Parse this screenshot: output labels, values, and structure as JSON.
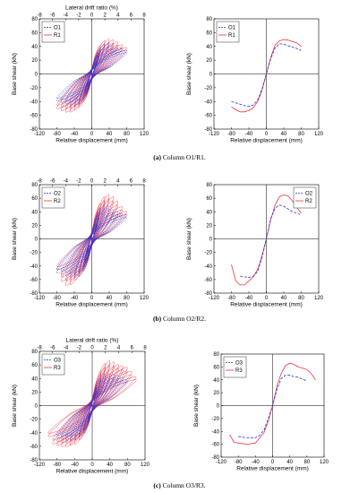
{
  "captions": [
    {
      "label": "(a)",
      "text": "Column O1/R1."
    },
    {
      "label": "(b)",
      "text": "Column O2/R2."
    },
    {
      "label": "(c)",
      "text": "Column O3/R3."
    }
  ],
  "chart_data": [
    {
      "type": "line",
      "top_xlabel": "Lateral drift ratio (%)",
      "top_xlim": [
        -8,
        8
      ],
      "top_xticks": [
        -8,
        -6,
        -4,
        -2,
        0,
        2,
        4,
        6,
        8
      ],
      "xlabel": "Relative displacement (mm)",
      "ylabel": "Base shear (kN)",
      "xlim": [
        -120,
        120
      ],
      "xticks": [
        -120,
        -80,
        -40,
        0,
        40,
        80,
        120
      ],
      "ylim": [
        -80,
        80
      ],
      "yticks": [
        80,
        60,
        40,
        20,
        0,
        -20,
        -40,
        -60,
        -80
      ],
      "legend": "top-left",
      "series": [
        {
          "name": "O1",
          "color": "#2233dd",
          "dashed": true,
          "cycles": [
            {
              "d": 10,
              "fp": 18,
              "fn": -18
            },
            {
              "d": 15,
              "fp": 28,
              "fn": -28
            },
            {
              "d": 20,
              "fp": 36,
              "fn": -36
            },
            {
              "d": 30,
              "fp": 43,
              "fn": -44
            },
            {
              "d": 40,
              "fp": 44,
              "fn": -46
            },
            {
              "d": 50,
              "fp": 41,
              "fn": -45
            },
            {
              "d": 60,
              "fp": 38,
              "fn": -43
            },
            {
              "d": 70,
              "fp": 36,
              "fn": -41
            },
            {
              "d": 80,
              "fp": 34,
              "fn": -39
            }
          ]
        },
        {
          "name": "R1",
          "color": "#ee3344",
          "dashed": false,
          "cycles": [
            {
              "d": 10,
              "fp": 20,
              "fn": -20
            },
            {
              "d": 15,
              "fp": 32,
              "fn": -32
            },
            {
              "d": 20,
              "fp": 42,
              "fn": -40
            },
            {
              "d": 30,
              "fp": 48,
              "fn": -48
            },
            {
              "d": 40,
              "fp": 50,
              "fn": -52
            },
            {
              "d": 50,
              "fp": 49,
              "fn": -55
            },
            {
              "d": 60,
              "fp": 46,
              "fn": -55
            },
            {
              "d": 70,
              "fp": 42,
              "fn": -53
            },
            {
              "d": 80,
              "fp": 38,
              "fn": -50
            }
          ]
        }
      ]
    },
    {
      "type": "line",
      "xlabel": "Relative displacement (mm)",
      "ylabel": "Base shear (kN)",
      "xlim": [
        -120,
        120
      ],
      "xticks": [
        -120,
        -80,
        -40,
        0,
        40,
        80,
        120
      ],
      "ylim": [
        -80,
        80
      ],
      "yticks": [
        80,
        60,
        40,
        20,
        0,
        -20,
        -40,
        -60,
        -80
      ],
      "legend": "top-left",
      "series": [
        {
          "name": "O1",
          "color": "#2233dd",
          "dashed": true,
          "x": [
            -80,
            -70,
            -60,
            -50,
            -40,
            -30,
            -20,
            -10,
            0,
            10,
            20,
            30,
            40,
            50,
            60,
            70,
            80
          ],
          "y": [
            -40,
            -42,
            -44,
            -46,
            -47,
            -45,
            -38,
            -22,
            0,
            22,
            38,
            44,
            43,
            41,
            39,
            37,
            34
          ]
        },
        {
          "name": "R1",
          "color": "#ee3344",
          "dashed": false,
          "x": [
            -80,
            -70,
            -60,
            -50,
            -40,
            -30,
            -20,
            -10,
            0,
            10,
            20,
            30,
            40,
            50,
            60,
            70,
            80
          ],
          "y": [
            -48,
            -52,
            -55,
            -55,
            -53,
            -49,
            -40,
            -24,
            0,
            24,
            42,
            48,
            50,
            49,
            47,
            45,
            40
          ]
        }
      ]
    },
    {
      "type": "line",
      "top_xlim": [
        -8,
        8
      ],
      "top_xticks": [
        -8,
        -6,
        -4,
        -2,
        0,
        2,
        4,
        6,
        8
      ],
      "xlabel": "Relative displacement (mm)",
      "ylabel": "Base shear (kN)",
      "xlim": [
        -120,
        120
      ],
      "xticks": [
        -120,
        -80,
        -40,
        0,
        40,
        80,
        120
      ],
      "ylim": [
        -80,
        80
      ],
      "yticks": [
        80,
        60,
        40,
        20,
        0,
        -20,
        -40,
        -60,
        -80
      ],
      "legend": "top-left",
      "series": [
        {
          "name": "O2",
          "color": "#2233dd",
          "dashed": true,
          "cycles": [
            {
              "d": 10,
              "fp": 22,
              "fn": -22
            },
            {
              "d": 15,
              "fp": 35,
              "fn": -35
            },
            {
              "d": 20,
              "fp": 45,
              "fn": -48
            },
            {
              "d": 30,
              "fp": 50,
              "fn": -55
            },
            {
              "d": 40,
              "fp": 48,
              "fn": -57
            },
            {
              "d": 50,
              "fp": 43,
              "fn": -56
            },
            {
              "d": 60,
              "fp": 40,
              "fn": -54
            },
            {
              "d": 70,
              "fp": 37,
              "fn": -52
            },
            {
              "d": 80,
              "fp": 35,
              "fn": -50
            }
          ]
        },
        {
          "name": "R2",
          "color": "#ee3344",
          "dashed": false,
          "cycles": [
            {
              "d": 10,
              "fp": 24,
              "fn": -22
            },
            {
              "d": 15,
              "fp": 40,
              "fn": -36
            },
            {
              "d": 20,
              "fp": 52,
              "fn": -46
            },
            {
              "d": 30,
              "fp": 62,
              "fn": -55
            },
            {
              "d": 40,
              "fp": 65,
              "fn": -60
            },
            {
              "d": 50,
              "fp": 62,
              "fn": -67
            },
            {
              "d": 60,
              "fp": 55,
              "fn": -68
            },
            {
              "d": 70,
              "fp": 47,
              "fn": -62
            },
            {
              "d": 80,
              "fp": 40,
              "fn": -45
            }
          ]
        }
      ]
    },
    {
      "type": "line",
      "xlabel": "Relative displacement (mm)",
      "ylabel": "Base shear (kN)",
      "xlim": [
        -120,
        120
      ],
      "xticks": [
        -120,
        -80,
        -40,
        0,
        40,
        80,
        120
      ],
      "ylim": [
        -80,
        80
      ],
      "yticks": [
        80,
        60,
        40,
        20,
        0,
        -20,
        -40,
        -60,
        -80
      ],
      "legend": "top-right",
      "series": [
        {
          "name": "O2",
          "color": "#2233dd",
          "dashed": true,
          "x": [
            -60,
            -50,
            -40,
            -30,
            -20,
            -10,
            0,
            10,
            20,
            30,
            40,
            50,
            60,
            70,
            78
          ],
          "y": [
            -55,
            -56,
            -57,
            -55,
            -48,
            -28,
            0,
            30,
            45,
            50,
            48,
            44,
            40,
            38,
            36
          ]
        },
        {
          "name": "R2",
          "color": "#ee3344",
          "dashed": false,
          "x": [
            -80,
            -75,
            -70,
            -60,
            -50,
            -40,
            -30,
            -20,
            -10,
            0,
            10,
            20,
            30,
            40,
            50,
            60,
            70,
            80
          ],
          "y": [
            -38,
            -50,
            -62,
            -68,
            -68,
            -62,
            -56,
            -45,
            -25,
            0,
            28,
            50,
            62,
            65,
            63,
            56,
            46,
            38
          ]
        }
      ]
    },
    {
      "type": "line",
      "top_xlabel": "Lateral drift ratio (%)",
      "top_xlim": [
        -8,
        8
      ],
      "top_xticks": [
        -8,
        -6,
        -4,
        -2,
        0,
        2,
        4,
        6,
        8
      ],
      "xlabel": "Relative displacement (mm)",
      "ylabel": "Base shear (kN)",
      "xlim": [
        -120,
        120
      ],
      "xticks": [
        -120,
        -80,
        -40,
        0,
        40,
        80,
        120
      ],
      "ylim": [
        -80,
        80
      ],
      "yticks": [
        80,
        60,
        40,
        20,
        0,
        -20,
        -40,
        -60,
        -80
      ],
      "legend": "top-left",
      "series": [
        {
          "name": "O3",
          "color": "#2233dd",
          "dashed": true,
          "cycles": [
            {
              "d": 10,
              "fp": 25,
              "fn": -20
            },
            {
              "d": 20,
              "fp": 42,
              "fn": -38
            },
            {
              "d": 30,
              "fp": 47,
              "fn": -46
            },
            {
              "d": 40,
              "fp": 47,
              "fn": -50
            },
            {
              "d": 50,
              "fp": 46,
              "fn": -50
            },
            {
              "d": 60,
              "fp": 44,
              "fn": -50
            },
            {
              "d": 70,
              "fp": 41,
              "fn": -49
            },
            {
              "d": 80,
              "fp": 38,
              "fn": -48
            }
          ]
        },
        {
          "name": "R3",
          "color": "#ee3344",
          "dashed": false,
          "cycles": [
            {
              "d": 10,
              "fp": 30,
              "fn": -24
            },
            {
              "d": 20,
              "fp": 50,
              "fn": -42
            },
            {
              "d": 30,
              "fp": 62,
              "fn": -50
            },
            {
              "d": 40,
              "fp": 66,
              "fn": -56
            },
            {
              "d": 50,
              "fp": 64,
              "fn": -58
            },
            {
              "d": 60,
              "fp": 60,
              "fn": -60
            },
            {
              "d": 70,
              "fp": 58,
              "fn": -60
            },
            {
              "d": 80,
              "fp": 56,
              "fn": -58
            },
            {
              "d": 90,
              "fp": 50,
              "fn": -56
            },
            {
              "d": 100,
              "fp": 42,
              "fn": -45
            }
          ]
        }
      ]
    },
    {
      "type": "line",
      "xlabel": "Relative displacement (mm)",
      "ylabel": "Base shear (kN)",
      "xlim": [
        -120,
        120
      ],
      "xticks": [
        -120,
        -80,
        -40,
        0,
        40,
        80,
        120
      ],
      "ylim": [
        -80,
        80
      ],
      "yticks": [
        80,
        60,
        40,
        20,
        0,
        -20,
        -40,
        -60,
        -80
      ],
      "legend": "top-left",
      "series": [
        {
          "name": "O3",
          "color": "#2233dd",
          "dashed": true,
          "x": [
            -80,
            -60,
            -40,
            -30,
            -20,
            -10,
            0,
            10,
            20,
            30,
            40,
            50,
            60,
            70,
            80
          ],
          "y": [
            -48,
            -50,
            -50,
            -46,
            -38,
            -20,
            0,
            25,
            42,
            47,
            47,
            45,
            44,
            41,
            38
          ]
        },
        {
          "name": "R3",
          "color": "#ee3344",
          "dashed": false,
          "x": [
            -100,
            -90,
            -80,
            -60,
            -40,
            -30,
            -20,
            -10,
            0,
            10,
            20,
            30,
            40,
            50,
            60,
            70,
            80,
            90,
            100
          ],
          "y": [
            -45,
            -57,
            -58,
            -60,
            -58,
            -50,
            -42,
            -24,
            0,
            30,
            50,
            62,
            66,
            64,
            60,
            58,
            56,
            50,
            40
          ]
        }
      ]
    }
  ]
}
